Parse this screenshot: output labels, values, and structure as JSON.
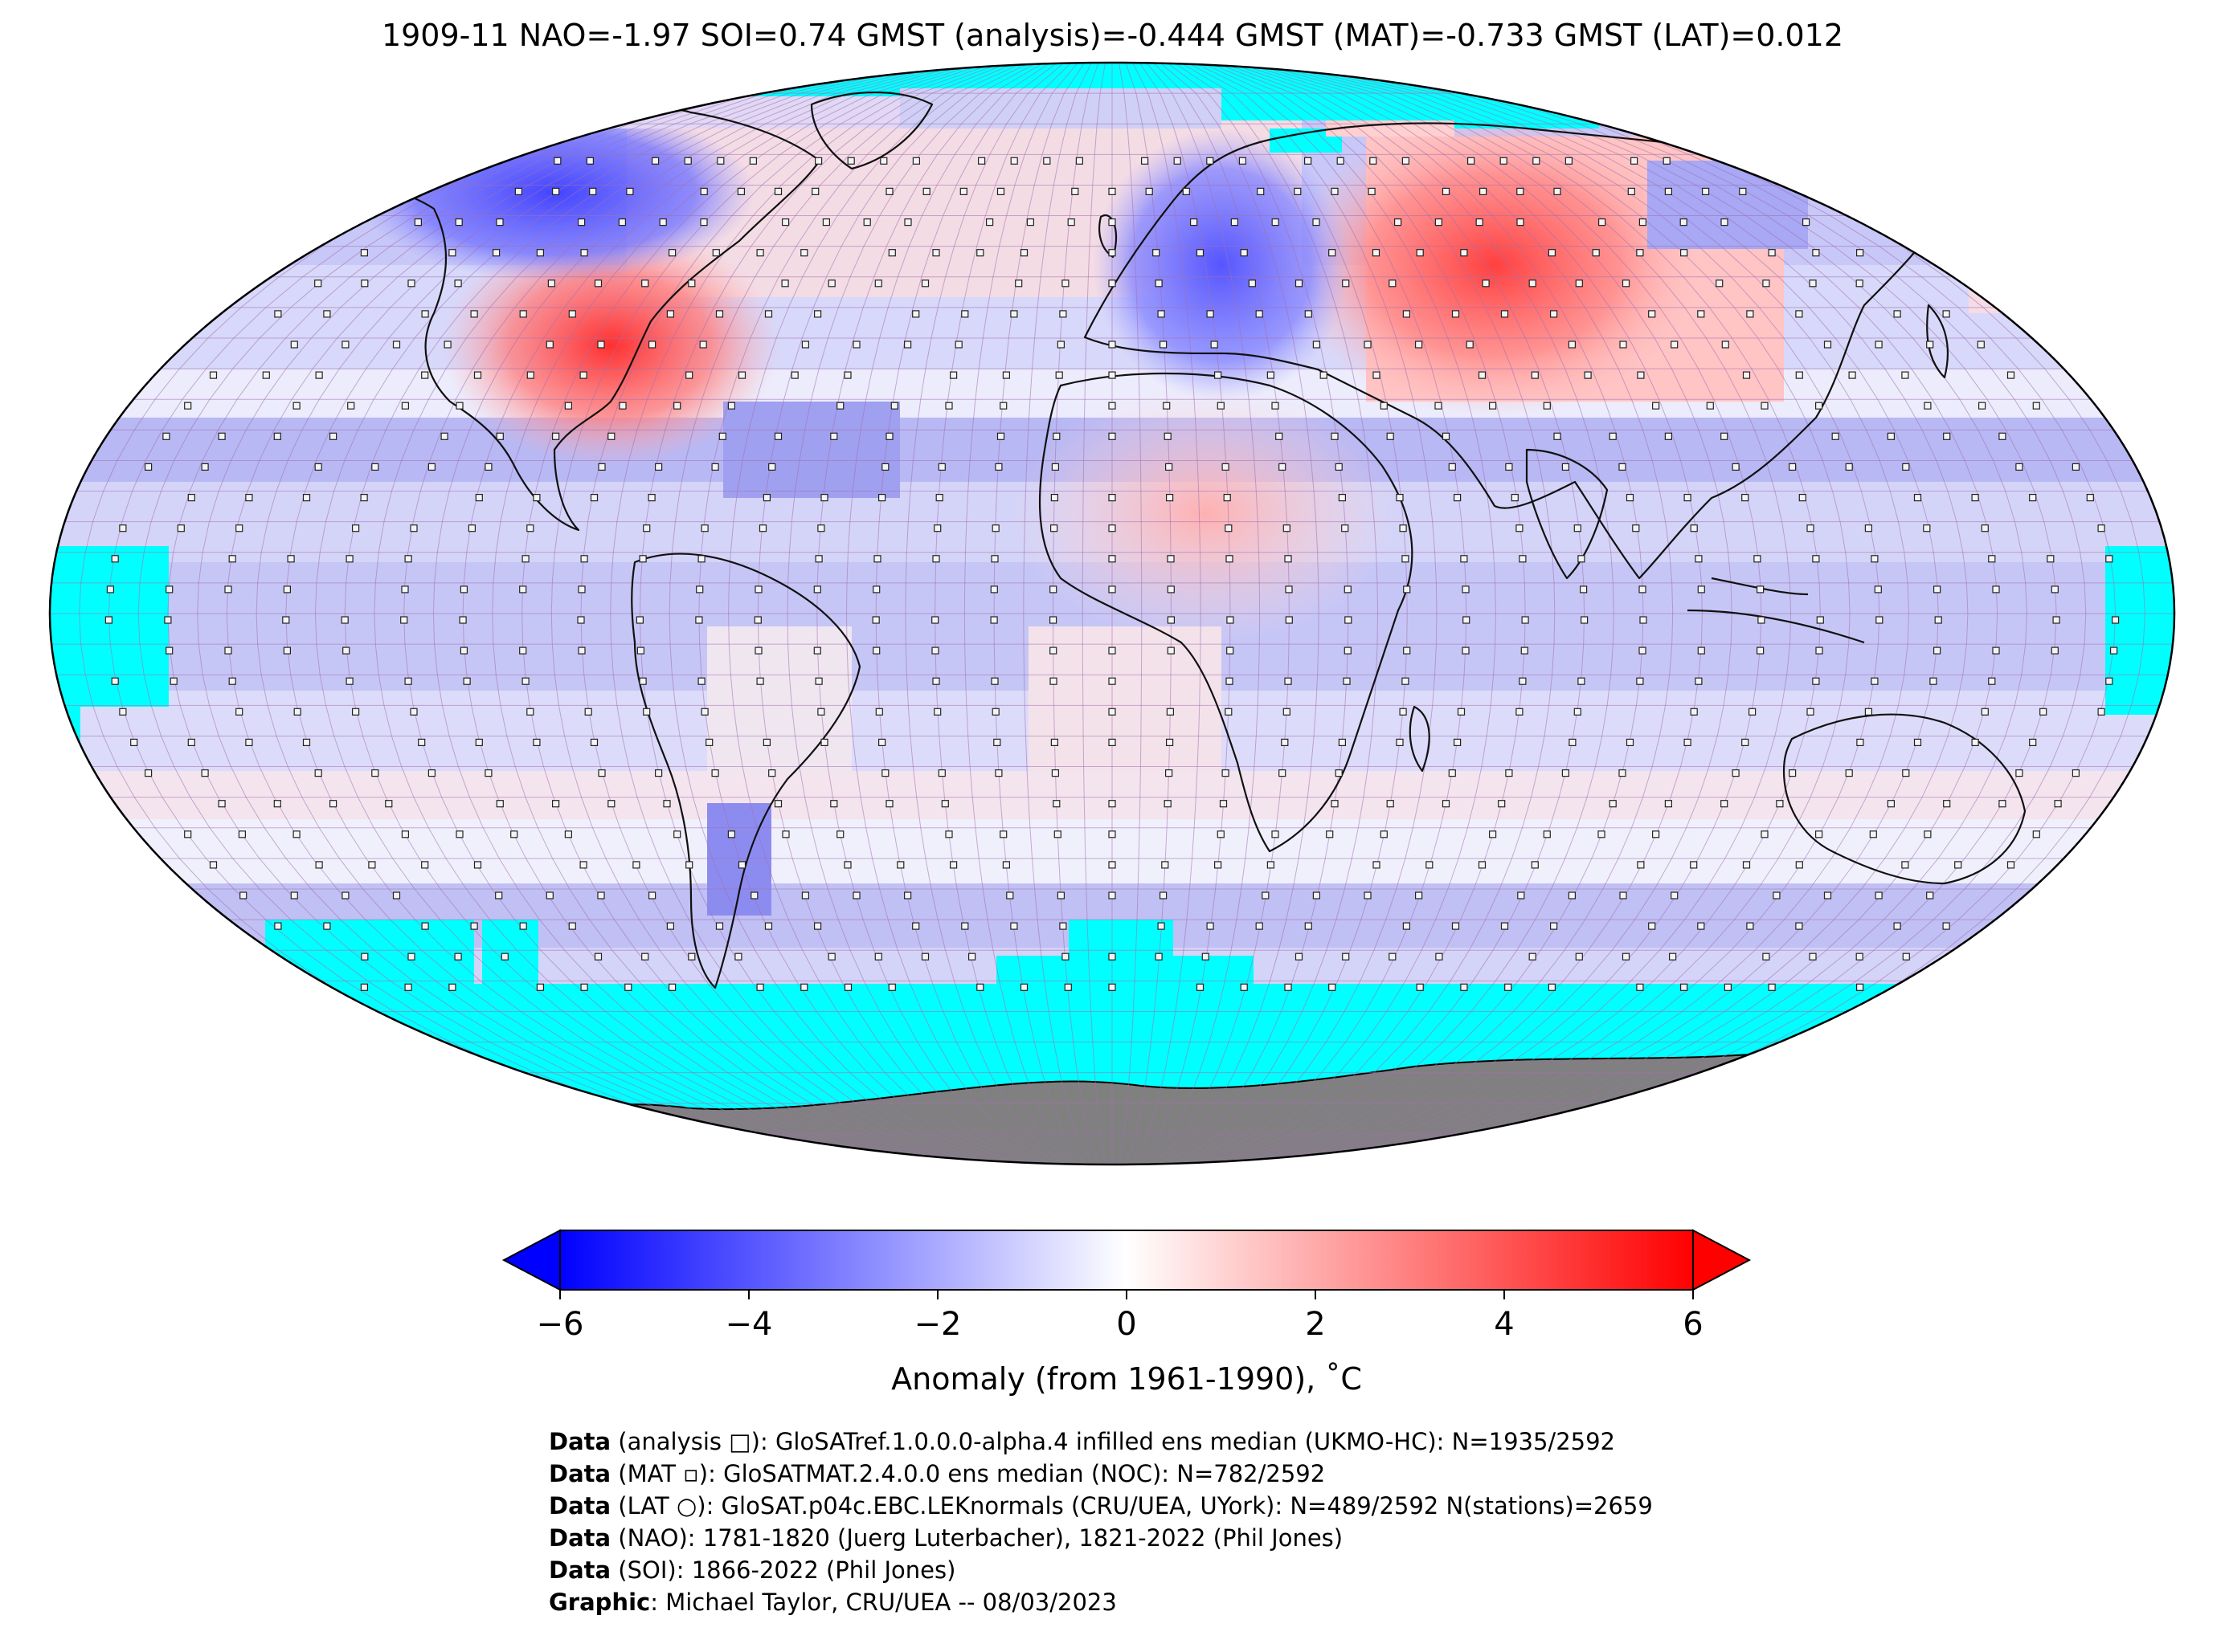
{
  "title": "1909-11 NAO=-1.97 SOI=0.74 GMST (analysis)=-0.444 GMST (MAT)=-0.733 GMST (LAT)=0.012",
  "colorbar": {
    "label": "Anomaly (from 1961-1990), ˚C",
    "min": -6,
    "max": 6,
    "ticks": [
      "−6",
      "−4",
      "−2",
      "0",
      "2",
      "4",
      "6"
    ],
    "low_color": "#0000ff",
    "mid_color": "#ffffff",
    "high_color": "#ff0000",
    "missing_color": "#00ffff",
    "land_mask_color": "#808080"
  },
  "credits": [
    {
      "bold": "Data",
      "text": " (analysis □): GloSATref.1.0.0.0-alpha.4 infilled ens median (UKMO-HC): N=1935/2592"
    },
    {
      "bold": "Data",
      "text": " (MAT ▫): GloSATMAT.2.4.0.0 ens median (NOC): N=782/2592"
    },
    {
      "bold": "Data",
      "text": " (LAT ○): GloSAT.p04c.EBC.LEKnormals (CRU/UEA, UYork): N=489/2592 N(stations)=2659"
    },
    {
      "bold": "Data",
      "text": " (NAO): 1781-1820 (Juerg Luterbacher), 1821-2022 (Phil Jones)"
    },
    {
      "bold": "Data",
      "text": " (SOI): 1866-2022 (Phil Jones)"
    },
    {
      "bold": "Graphic",
      "text": ": Michael Taylor, CRU/UEA -- 08/03/2023"
    }
  ]
}
